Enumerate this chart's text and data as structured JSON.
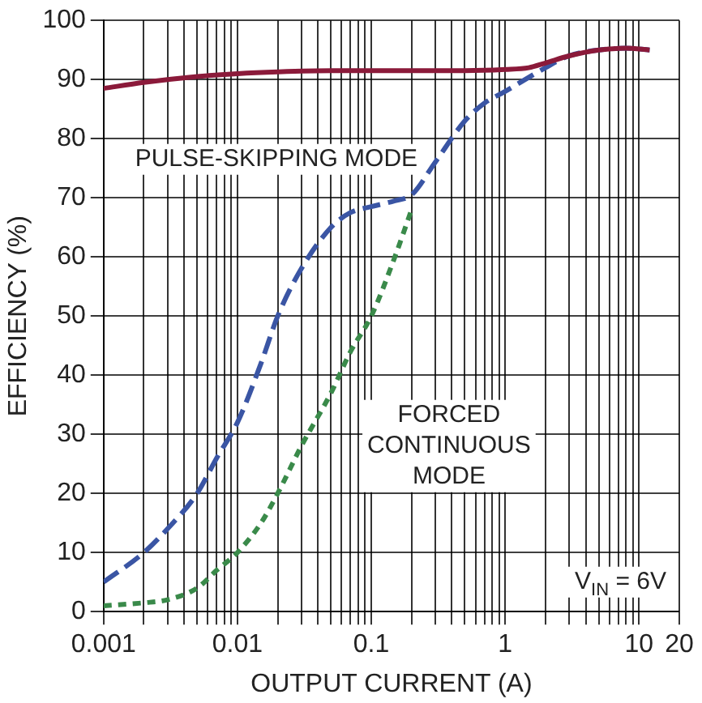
{
  "chart_data": {
    "type": "line",
    "xlabel": "OUTPUT CURRENT (A)",
    "ylabel": "EFFICIENCY (%)",
    "log": "x",
    "grid": true,
    "legend": false,
    "marker": "none",
    "xlim": [
      0.001,
      20
    ],
    "ylim": [
      0,
      100
    ],
    "xticks": [
      0.001,
      {
        "value": 0.002,
        "label": null
      },
      {
        "value": 0.003,
        "label": null
      },
      {
        "value": 0.004,
        "label": null
      },
      {
        "value": 0.005,
        "label": null
      },
      {
        "value": 0.006,
        "label": null
      },
      {
        "value": 0.007,
        "label": null
      },
      {
        "value": 0.008,
        "label": null
      },
      {
        "value": 0.009,
        "label": null
      },
      0.01,
      {
        "value": 0.02,
        "label": null
      },
      {
        "value": 0.03,
        "label": null
      },
      {
        "value": 0.04,
        "label": null
      },
      {
        "value": 0.05,
        "label": null
      },
      {
        "value": 0.06,
        "label": null
      },
      {
        "value": 0.07,
        "label": null
      },
      {
        "value": 0.08,
        "label": null
      },
      {
        "value": 0.09,
        "label": null
      },
      0.1,
      {
        "value": 0.2,
        "label": null
      },
      {
        "value": 0.3,
        "label": null
      },
      {
        "value": 0.4,
        "label": null
      },
      {
        "value": 0.5,
        "label": null
      },
      {
        "value": 0.6,
        "label": null
      },
      {
        "value": 0.7,
        "label": null
      },
      {
        "value": 0.8,
        "label": null
      },
      {
        "value": 0.9,
        "label": null
      },
      1,
      {
        "value": 2,
        "label": null
      },
      {
        "value": 3,
        "label": null
      },
      {
        "value": 4,
        "label": null
      },
      {
        "value": 5,
        "label": null
      },
      {
        "value": 6,
        "label": null
      },
      {
        "value": 7,
        "label": null
      },
      {
        "value": 8,
        "label": null
      },
      {
        "value": 9,
        "label": null
      },
      10,
      20
    ],
    "yticks": [
      0,
      10,
      20,
      30,
      40,
      50,
      60,
      70,
      80,
      90,
      100
    ],
    "series": [
      {
        "color": "#8b1a3a",
        "line_style": "solid",
        "x": [
          0.001,
          0.002,
          0.005,
          0.01,
          0.02,
          0.05,
          0.1,
          0.2,
          0.5,
          1,
          1.5,
          2,
          3,
          5,
          8,
          12
        ],
        "values": [
          88.5,
          89.5,
          90.5,
          91,
          91.3,
          91.5,
          91.5,
          91.5,
          91.5,
          91.7,
          92,
          92.8,
          94,
          95,
          95.3,
          95
        ]
      },
      {
        "color": "#3a55a4",
        "line_style": "dashed",
        "x": [
          0.001,
          0.002,
          0.003,
          0.005,
          0.007,
          0.01,
          0.015,
          0.02,
          0.03,
          0.05,
          0.07,
          0.1,
          0.15,
          0.2,
          0.3,
          0.5,
          0.7,
          1,
          2,
          3,
          5,
          8,
          12
        ],
        "values": [
          5,
          10,
          14,
          20,
          26,
          32,
          42,
          50,
          58,
          65,
          67.5,
          68.5,
          69.5,
          70.5,
          76,
          83,
          86,
          88,
          92,
          94,
          95,
          95.3,
          95
        ]
      },
      {
        "color": "#3a8a4a",
        "line_style": "dotted",
        "x": [
          0.001,
          0.002,
          0.003,
          0.005,
          0.007,
          0.01,
          0.015,
          0.02,
          0.03,
          0.05,
          0.07,
          0.1,
          0.15,
          0.2
        ],
        "values": [
          1,
          1.5,
          2,
          4,
          7,
          10,
          15,
          20,
          28,
          37,
          44,
          50,
          60,
          68
        ]
      }
    ],
    "annotations": [
      "PULSE-SKIPPING MODE",
      "FORCED\nCONTINUOUS\nMODE",
      "V$_{IN}$ = 6V"
    ]
  }
}
